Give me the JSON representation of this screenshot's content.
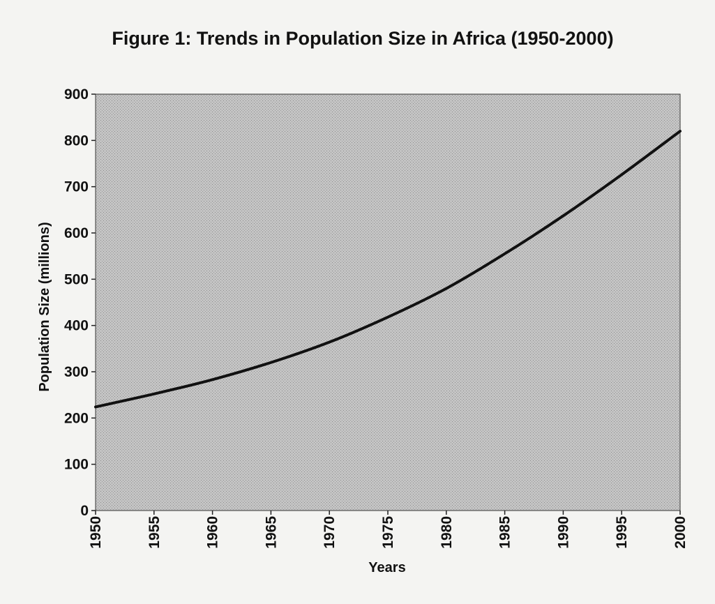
{
  "chart_data": {
    "type": "line",
    "title": "Figure 1: Trends in Population Size in Africa (1950-2000)",
    "xlabel": "Years",
    "ylabel": "Population Size (millions)",
    "x": [
      1950,
      1955,
      1960,
      1965,
      1970,
      1975,
      1980,
      1985,
      1990,
      1995,
      2000
    ],
    "x_tick_labels": [
      "1950",
      "1955",
      "1960",
      "1965",
      "1970",
      "1975",
      "1980",
      "1985",
      "1990",
      "1995",
      "2000"
    ],
    "y_tick_labels": [
      "0",
      "100",
      "200",
      "300",
      "400",
      "500",
      "600",
      "700",
      "800",
      "900"
    ],
    "xlim": [
      1950,
      2000
    ],
    "ylim": [
      0,
      900
    ],
    "grid": false,
    "legend": "none",
    "series": [
      {
        "values": [
          224,
          252,
          283,
          320,
          364,
          418,
          480,
          555,
          637,
          726,
          820
        ],
        "color": "#111111"
      }
    ],
    "colors": {
      "plot_background": "#b9b9b9",
      "page_background": "#f4f4f2",
      "line": "#111111"
    }
  }
}
